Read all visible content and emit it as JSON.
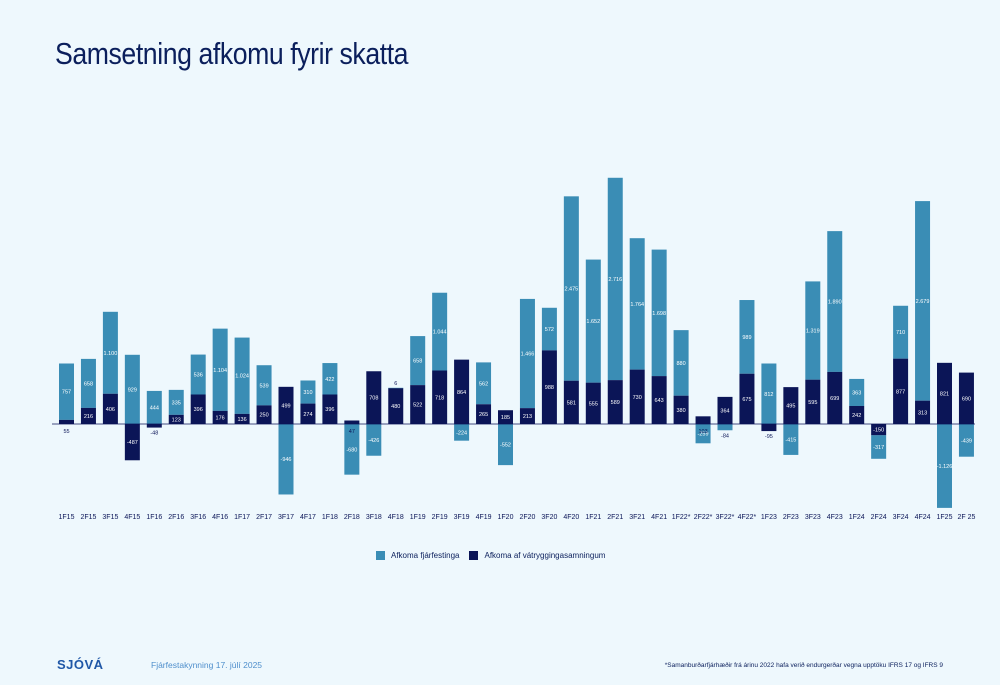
{
  "page": {
    "title": "Samsetning afkomu fyrir skatta",
    "logo": "SJÓVÁ",
    "footer_date": "Fjárfestakynning 17. júlí 2025",
    "footnote": "*Samanburðarfjárhæðir frá árinu 2022 hafa verið endurgerðar vegna upptöku IFRS 17 og IFRS 9"
  },
  "colors": {
    "investment": "#3a8db5",
    "insurance": "#0b1557",
    "background": "#eef8fd",
    "title": "#0b1f5c"
  },
  "chart_data": {
    "type": "bar",
    "stacked": true,
    "categories": [
      "1F15",
      "2F15",
      "3F15",
      "4F15",
      "1F16",
      "2F16",
      "3F16",
      "4F16",
      "1F17",
      "2F17",
      "3F17",
      "4F17",
      "1F18",
      "2F18",
      "3F18",
      "4F18",
      "1F19",
      "2F19",
      "3F19",
      "4F19",
      "1F20",
      "2F20",
      "3F20",
      "4F20",
      "1F21",
      "2F21",
      "3F21",
      "4F21",
      "1F22*",
      "2F22*",
      "3F22*",
      "4F22*",
      "1F23",
      "2F23",
      "3F23",
      "4F23",
      "1F24",
      "2F24",
      "3F24",
      "4F24",
      "1F25",
      "2F 25"
    ],
    "series": [
      {
        "name": "Afkoma af vátryggingasamningum",
        "values": [
          55,
          216,
          406,
          -487,
          -48,
          123,
          396,
          176,
          136,
          250,
          499,
          274,
          396,
          47,
          708,
          480,
          522,
          718,
          864,
          265,
          185,
          213,
          988,
          581,
          555,
          589,
          730,
          643,
          380,
          103,
          364,
          675,
          -95,
          495,
          595,
          699,
          242,
          -150,
          877,
          313,
          821,
          690
        ],
        "labels": [
          "55",
          "216",
          "406",
          "-487",
          "-48",
          "123",
          "396",
          "176",
          "136",
          "250",
          "499",
          "274",
          "396",
          "47",
          "708",
          "480",
          "522",
          "718",
          "864",
          "265",
          "185",
          "213",
          "988",
          "581",
          "555",
          "589",
          "730",
          "643",
          "380",
          "103",
          "364",
          "675",
          "-95",
          "495",
          "595",
          "699",
          "242",
          "-150",
          "877",
          "313",
          "821",
          "690"
        ]
      },
      {
        "name": "Afkoma fjárfestinga",
        "values": [
          757,
          658,
          1100,
          929,
          444,
          335,
          536,
          1104,
          1024,
          539,
          -946,
          310,
          422,
          -680,
          -426,
          6,
          658,
          1044,
          -224,
          562,
          -552,
          1466,
          572,
          2475,
          1652,
          2716,
          1764,
          1698,
          880,
          -259,
          -84,
          989,
          812,
          -415,
          1319,
          1890,
          363,
          -317,
          710,
          2679,
          -1126,
          -439
        ],
        "labels": [
          "757",
          "658",
          "1.100",
          "929",
          "444",
          "335",
          "536",
          "1.104",
          "1.024",
          "539",
          "-946",
          "310",
          "422",
          "-680",
          "-426",
          "6",
          "658",
          "1.044",
          "-224",
          "562",
          "-552",
          "1.466",
          "572",
          "2.475",
          "1.652",
          "2.716",
          "1.764",
          "1.698",
          "880",
          "-259",
          "-84",
          "989",
          "812",
          "-415",
          "1.319",
          "1.890",
          "363",
          "-317",
          "710",
          "2.679",
          "-1.126",
          "-439"
        ]
      }
    ],
    "legend_position": "bottom-center",
    "grid": false
  }
}
